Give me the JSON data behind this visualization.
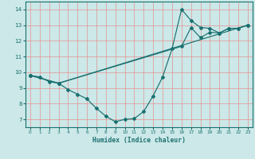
{
  "xlabel": "Humidex (Indice chaleur)",
  "bg_color": "#cce8e8",
  "line_color": "#1a7070",
  "grid_color": "#e88888",
  "xlim": [
    -0.5,
    23.5
  ],
  "ylim": [
    6.5,
    14.5
  ],
  "xticks": [
    0,
    1,
    2,
    3,
    4,
    5,
    6,
    7,
    8,
    9,
    10,
    11,
    12,
    13,
    14,
    15,
    16,
    17,
    18,
    19,
    20,
    21,
    22,
    23
  ],
  "yticks": [
    7,
    8,
    9,
    10,
    11,
    12,
    13,
    14
  ],
  "series1_x": [
    0,
    1,
    2,
    3,
    4,
    5,
    6,
    7,
    8,
    9,
    10,
    11,
    12,
    13,
    14,
    15,
    16,
    17,
    18,
    19,
    20,
    21,
    22,
    23
  ],
  "series1_y": [
    9.8,
    9.7,
    9.4,
    9.3,
    8.9,
    8.6,
    8.3,
    7.7,
    7.2,
    6.85,
    7.0,
    7.05,
    7.5,
    8.5,
    9.7,
    11.5,
    14.0,
    13.3,
    12.85,
    12.8,
    12.5,
    12.8,
    12.8,
    13.0
  ],
  "series2_x": [
    0,
    3,
    23
  ],
  "series2_y": [
    9.8,
    9.3,
    13.0
  ],
  "series3_x": [
    0,
    3,
    16,
    17,
    18,
    19,
    20,
    21,
    22,
    23
  ],
  "series3_y": [
    9.8,
    9.3,
    11.65,
    12.85,
    12.2,
    12.55,
    12.5,
    12.8,
    12.8,
    13.0
  ]
}
